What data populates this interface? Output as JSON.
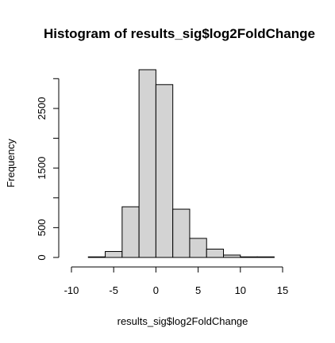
{
  "chart_data": {
    "type": "histogram",
    "title": "Histogram of results_sig$log2FoldChange",
    "xlabel": "results_sig$log2FoldChange",
    "ylabel": "Frequency",
    "bins": [
      {
        "start": -8,
        "end": -6,
        "count": 10
      },
      {
        "start": -6,
        "end": -4,
        "count": 100
      },
      {
        "start": -4,
        "end": -2,
        "count": 850
      },
      {
        "start": -2,
        "end": 0,
        "count": 3150
      },
      {
        "start": 0,
        "end": 2,
        "count": 2900
      },
      {
        "start": 2,
        "end": 4,
        "count": 810
      },
      {
        "start": 4,
        "end": 6,
        "count": 320
      },
      {
        "start": 6,
        "end": 8,
        "count": 140
      },
      {
        "start": 8,
        "end": 10,
        "count": 40
      },
      {
        "start": 10,
        "end": 12,
        "count": 10
      },
      {
        "start": 12,
        "end": 14,
        "count": 10
      }
    ],
    "x_ticks": [
      -10,
      -5,
      0,
      5,
      10,
      15
    ],
    "y_ticks": [
      0,
      500,
      1500,
      2500
    ],
    "xlim": [
      -10,
      15
    ],
    "ylim": [
      0,
      3150
    ],
    "grid": false,
    "colors": {
      "bar_fill": "#d3d3d3",
      "bar_stroke": "#000000"
    }
  }
}
